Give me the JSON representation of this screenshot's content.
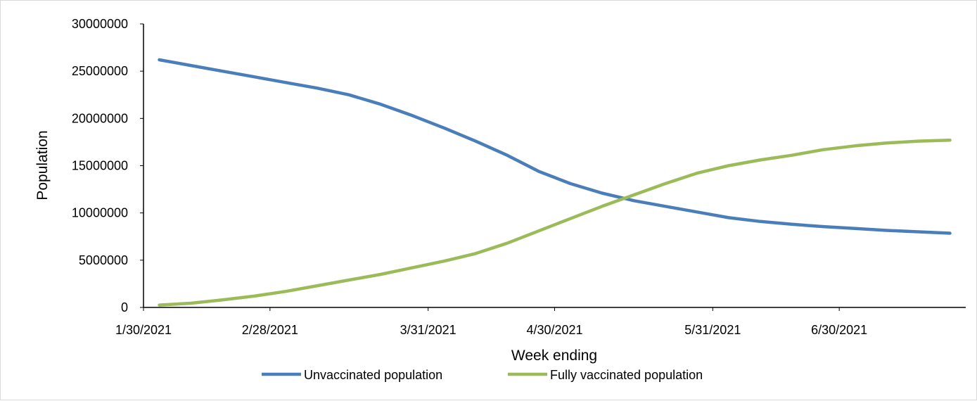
{
  "chart_data": {
    "type": "line",
    "title": "",
    "xlabel": "Week ending",
    "ylabel": "Population",
    "ylim": [
      0,
      30000000
    ],
    "ytick_step": 5000000,
    "y_ticks": [
      "0",
      "5000000",
      "10000000",
      "15000000",
      "20000000",
      "25000000",
      "30000000"
    ],
    "x_tick_labels": [
      "1/30/2021",
      "2/28/2021",
      "3/31/2021",
      "4/30/2021",
      "5/31/2021",
      "6/30/2021"
    ],
    "x_tick_indices": [
      0,
      4,
      9,
      13,
      18,
      22
    ],
    "num_points": 26,
    "grid": false,
    "legend_position": "bottom",
    "series": [
      {
        "name": "Unvaccinated population",
        "color": "#4a7ebb",
        "values": [
          26200000,
          25600000,
          25000000,
          24400000,
          23800000,
          23200000,
          22500000,
          21500000,
          20300000,
          19000000,
          17600000,
          16100000,
          14400000,
          13100000,
          12100000,
          11300000,
          10700000,
          10100000,
          9500000,
          9100000,
          8800000,
          8550000,
          8350000,
          8150000,
          8000000,
          7850000
        ]
      },
      {
        "name": "Fully vaccinated population",
        "color": "#9bbb59",
        "values": [
          250000,
          450000,
          800000,
          1200000,
          1700000,
          2300000,
          2900000,
          3500000,
          4200000,
          4900000,
          5700000,
          6800000,
          8100000,
          9400000,
          10700000,
          11900000,
          13100000,
          14200000,
          15000000,
          15600000,
          16100000,
          16700000,
          17100000,
          17400000,
          17600000,
          17700000
        ]
      }
    ]
  }
}
